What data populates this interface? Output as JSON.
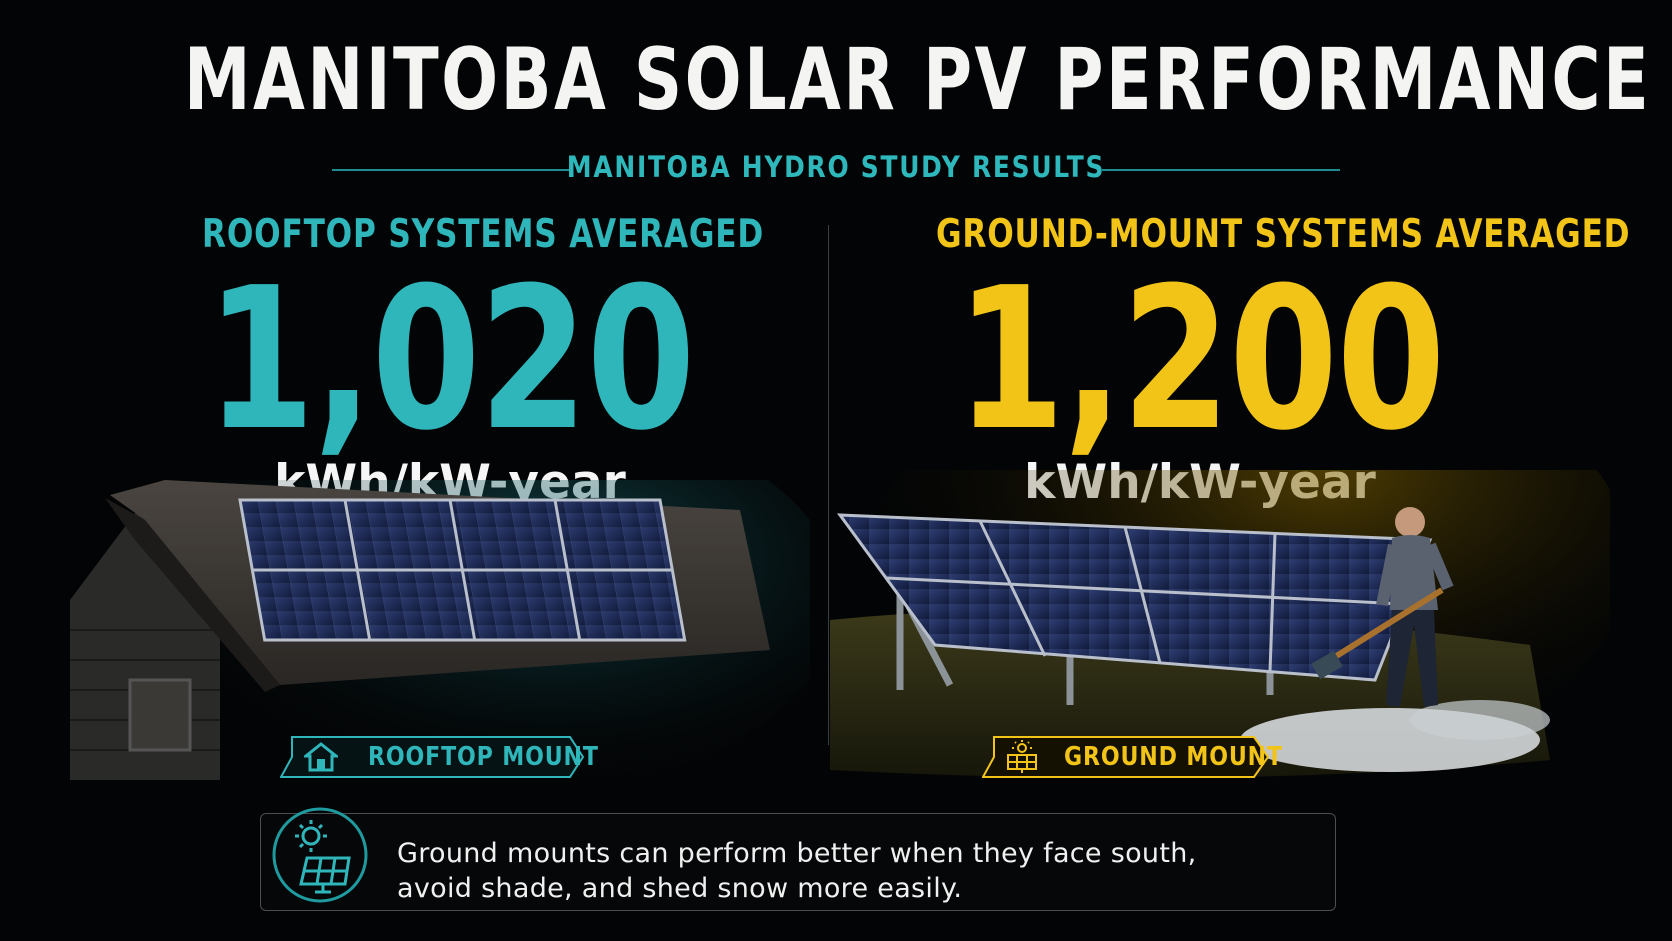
{
  "title": "MANITOBA SOLAR PV PERFORMANCE",
  "subtitle": "MANITOBA HYDRO STUDY RESULTS",
  "rooftop": {
    "heading": "ROOFTOP SYSTEMS AVERAGED",
    "value": "1,020",
    "unit": "kWh/kW-year",
    "tag": "ROOFTOP MOUNT",
    "accent": "#2fb6bb"
  },
  "ground": {
    "heading": "GROUND-MOUNT SYSTEMS AVERAGED",
    "value": "1,200",
    "unit": "kWh/kW-year",
    "tag": "GROUND MOUNT",
    "accent": "#f2c417"
  },
  "note": {
    "line1": "Ground mounts can perform better when they face south,",
    "line2": "avoid shade, and shed snow more easily.",
    "icon": "sun-solar-panel-icon"
  }
}
